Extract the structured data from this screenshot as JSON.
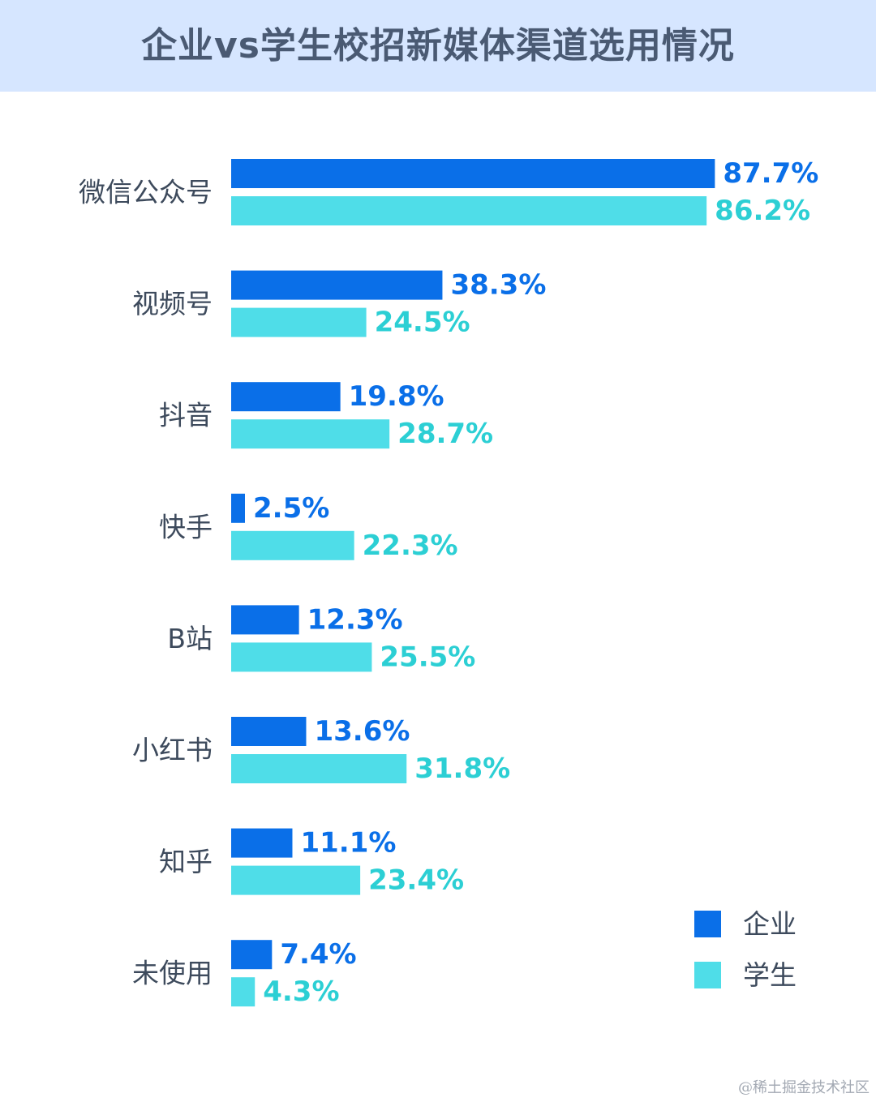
{
  "chart_data": {
    "type": "bar",
    "orientation": "horizontal",
    "title": "企业vs学生校招新媒体渠道选用情况",
    "categories": [
      "微信公众号",
      "视频号",
      "抖音",
      "快手",
      "B站",
      "小红书",
      "知乎",
      "未使用"
    ],
    "series": [
      {
        "name": "企业",
        "color": "#0a6fe8",
        "label_color": "#0a6fe8",
        "values": [
          87.7,
          38.3,
          19.8,
          2.5,
          12.3,
          13.6,
          11.1,
          7.4
        ]
      },
      {
        "name": "学生",
        "color": "#4fdde8",
        "label_color": "#2ccfd4",
        "values": [
          86.2,
          24.5,
          28.7,
          22.3,
          25.5,
          31.8,
          23.4,
          4.3
        ]
      }
    ],
    "value_suffix": "%",
    "legend_position": "bottom-right",
    "grid": false,
    "xlim": [
      0,
      100
    ]
  },
  "header_bg": "#d6e6ff",
  "watermark": "@稀土掘金技术社区"
}
